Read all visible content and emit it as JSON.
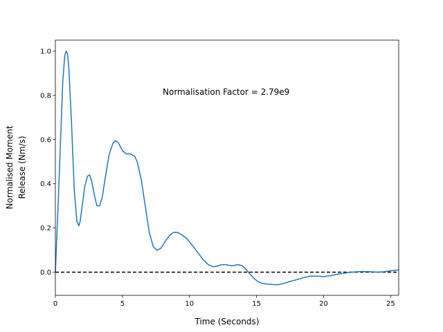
{
  "chart_data": {
    "type": "line",
    "title": "",
    "xlabel": "Time (Seconds)",
    "ylabel_lines": [
      "Normalised Moment",
      "Release (Nm/s)"
    ],
    "xlim": [
      0,
      25.6
    ],
    "ylim": [
      -0.105,
      1.05
    ],
    "xticks": [
      0,
      5,
      10,
      15,
      20,
      25
    ],
    "yticks": [
      0.0,
      0.2,
      0.4,
      0.6,
      0.8,
      1.0
    ],
    "xtick_labels": [
      "0",
      "5",
      "10",
      "15",
      "20",
      "25"
    ],
    "ytick_labels": [
      "0.0",
      "0.2",
      "0.4",
      "0.6",
      "0.8",
      "1.0"
    ],
    "annotation": {
      "text": "Normalisation Factor = 2.79e9",
      "x": 8.0,
      "y": 0.8
    },
    "reference_line": {
      "y": 0.0,
      "style": "dashed",
      "color": "#000000"
    },
    "grid": false,
    "colors": {
      "series": "#1f77b4"
    },
    "series": [
      {
        "x": [
          0,
          0.2,
          0.4,
          0.55,
          0.7,
          0.8,
          0.9,
          1.0,
          1.2,
          1.4,
          1.6,
          1.75,
          1.85,
          2.0,
          2.2,
          2.4,
          2.55,
          2.7,
          2.9,
          3.1,
          3.3,
          3.5,
          3.7,
          4.0,
          4.3,
          4.5,
          4.7,
          5.0,
          5.3,
          5.6,
          5.9,
          6.1,
          6.4,
          6.7,
          7.0,
          7.3,
          7.6,
          7.9,
          8.2,
          8.5,
          8.8,
          9.1,
          9.4,
          9.8,
          10.2,
          10.6,
          11.0,
          11.4,
          11.8,
          12.1,
          12.4,
          12.7,
          13.0,
          13.3,
          13.6,
          13.9,
          14.2,
          14.5,
          14.8,
          15.1,
          15.4,
          15.8,
          16.2,
          16.6,
          17.0,
          17.5,
          18.0,
          18.5,
          19.0,
          19.5,
          20.0,
          20.5,
          21.0,
          21.5,
          22.0,
          22.5,
          23.0,
          23.5,
          24.0,
          24.5,
          25.0,
          25.6
        ],
        "y": [
          0.0,
          0.3,
          0.62,
          0.86,
          0.98,
          1.0,
          0.99,
          0.93,
          0.68,
          0.38,
          0.23,
          0.21,
          0.23,
          0.3,
          0.39,
          0.435,
          0.44,
          0.415,
          0.35,
          0.3,
          0.3,
          0.34,
          0.42,
          0.53,
          0.585,
          0.595,
          0.585,
          0.55,
          0.535,
          0.535,
          0.525,
          0.5,
          0.42,
          0.3,
          0.18,
          0.115,
          0.098,
          0.11,
          0.14,
          0.165,
          0.18,
          0.18,
          0.17,
          0.152,
          0.122,
          0.09,
          0.058,
          0.034,
          0.024,
          0.028,
          0.034,
          0.034,
          0.03,
          0.03,
          0.034,
          0.03,
          0.014,
          -0.008,
          -0.028,
          -0.043,
          -0.05,
          -0.054,
          -0.056,
          -0.057,
          -0.052,
          -0.042,
          -0.034,
          -0.025,
          -0.018,
          -0.018,
          -0.02,
          -0.016,
          -0.01,
          -0.005,
          -0.001,
          0.002,
          0.003,
          0.002,
          0.0,
          0.002,
          0.006,
          0.01
        ]
      }
    ]
  }
}
